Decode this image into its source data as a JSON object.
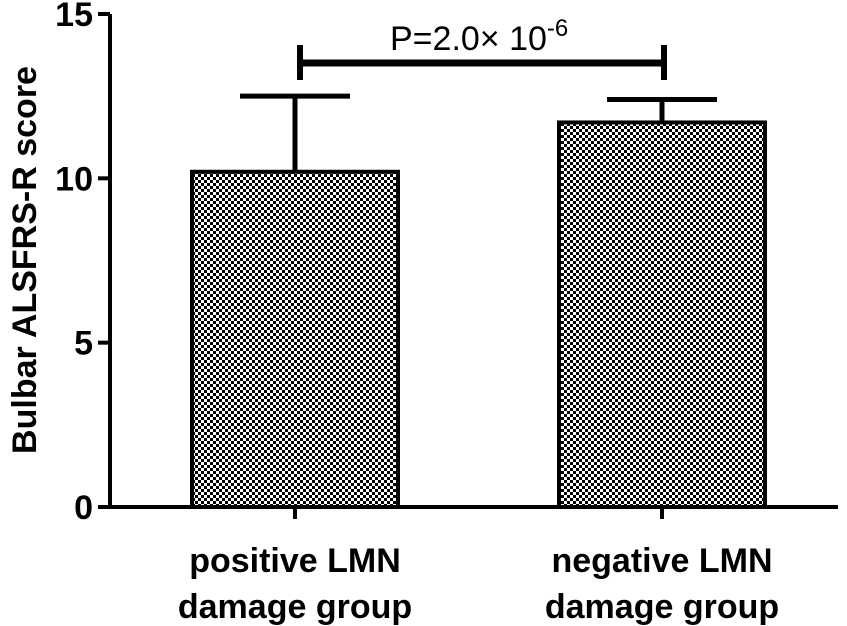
{
  "chart_data": {
    "type": "bar",
    "categories": [
      [
        "positive LMN",
        "damage group"
      ],
      [
        "negative LMN",
        "damage group"
      ]
    ],
    "values": [
      10.2,
      11.7
    ],
    "error_upper": [
      12.5,
      12.4
    ],
    "ylabel": "Bulbar ALSFRS-R score",
    "ylim": [
      0,
      15
    ],
    "yticks": [
      0,
      5,
      10,
      15
    ],
    "grid": false,
    "bar_fill": "checkered black/white",
    "significance": {
      "text_main": "P=2.0× 10",
      "text_exponent": "-6"
    }
  }
}
